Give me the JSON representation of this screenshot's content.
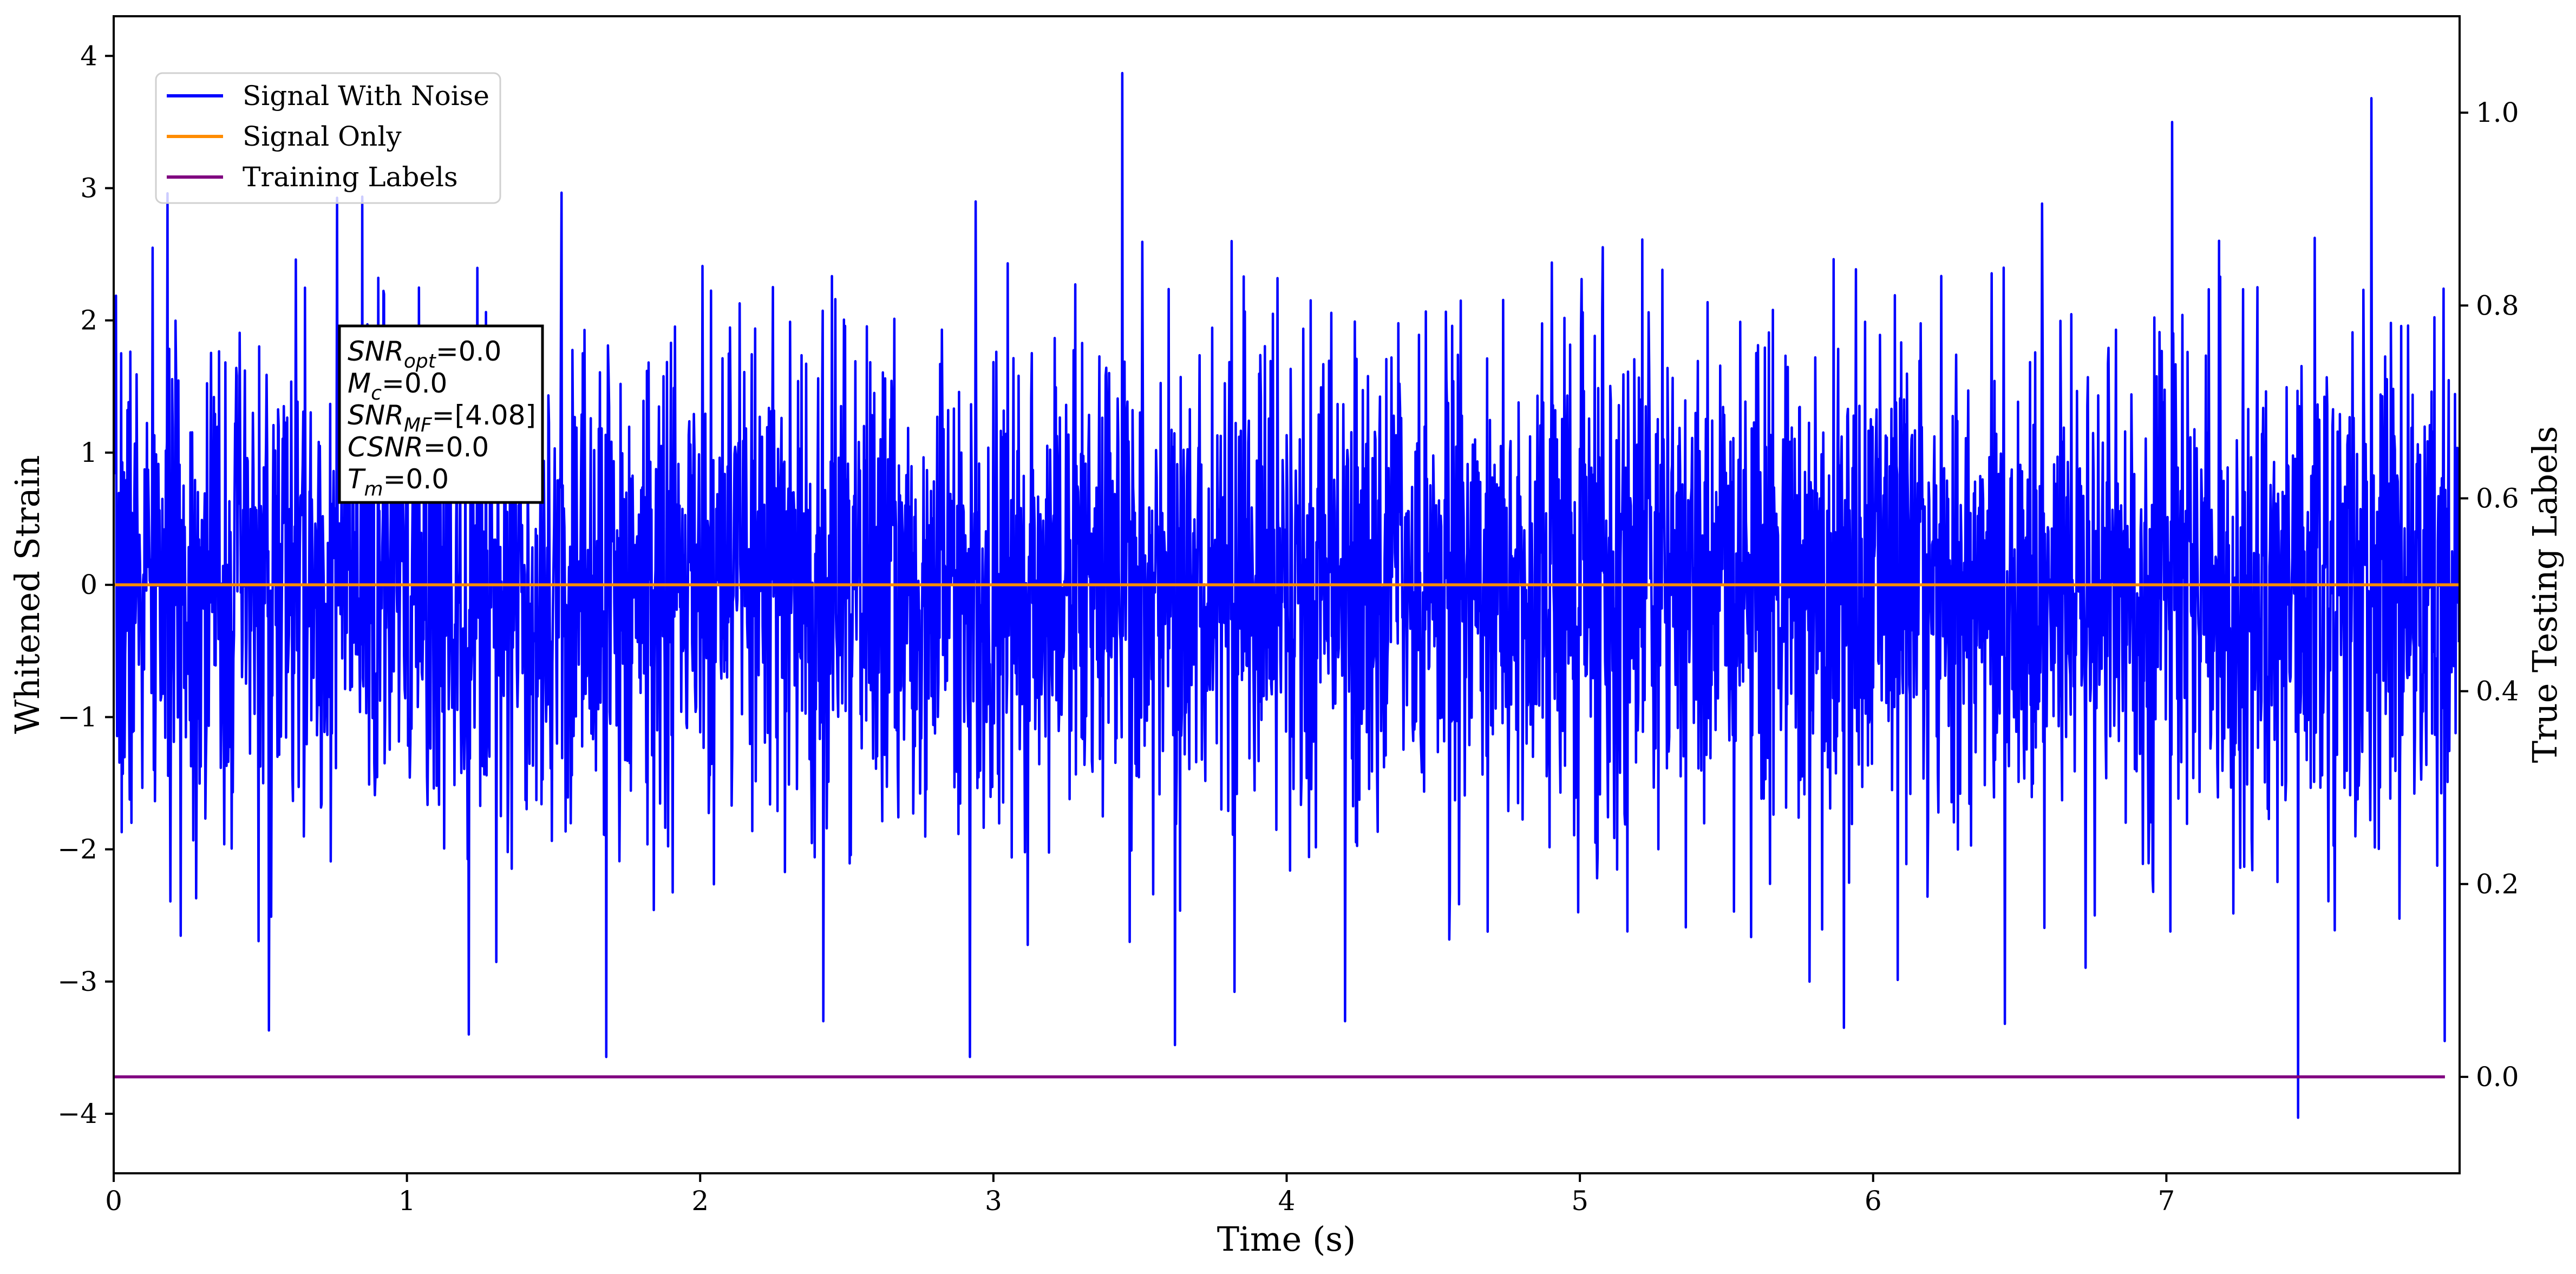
{
  "chart_data": {
    "type": "line",
    "title": "",
    "xlabel": "Time (s)",
    "ylabel": "Whitened Strain",
    "ylabel_right": "True Testing Labels",
    "xlim": [
      0,
      8.0
    ],
    "ylim": [
      -4.45,
      4.3
    ],
    "ylim_right": [
      -0.1,
      1.1
    ],
    "x_ticks": [
      0,
      1,
      2,
      3,
      4,
      5,
      6,
      7
    ],
    "y_ticks": [
      -4,
      -3,
      -2,
      -1,
      0,
      1,
      2,
      3,
      4
    ],
    "y_ticks_right": [
      0.0,
      0.2,
      0.4,
      0.6,
      0.8,
      1.0
    ],
    "y_tick_labels": [
      "−4",
      "−3",
      "−2",
      "−1",
      "0",
      "1",
      "2",
      "3",
      "4"
    ],
    "y_tick_labels_right": [
      "0.0",
      "0.2",
      "0.4",
      "0.6",
      "0.8",
      "1.0"
    ],
    "grid": false,
    "legend_position": "top-left",
    "series": [
      {
        "name": "Signal With Noise",
        "color": "#0000ff",
        "sample_rate_hz": 512,
        "noise_std": 0.95,
        "noise_seed": 7,
        "peaks": [
          [
            0.53,
            -3.37
          ],
          [
            1.21,
            -3.4
          ],
          [
            1.68,
            -3.57
          ],
          [
            2.42,
            -3.3
          ],
          [
            2.92,
            -3.57
          ],
          [
            3.44,
            3.87
          ],
          [
            3.62,
            -3.48
          ],
          [
            4.2,
            -3.3
          ],
          [
            5.9,
            -3.35
          ],
          [
            6.45,
            -3.32
          ],
          [
            7.02,
            3.5
          ],
          [
            7.45,
            -4.03
          ],
          [
            7.7,
            3.68
          ],
          [
            7.95,
            -3.45
          ]
        ]
      },
      {
        "name": "Signal Only",
        "color": "#ff8c00",
        "x": [
          0,
          8.0
        ],
        "y": [
          0,
          0
        ]
      },
      {
        "name": "Training Labels",
        "color": "#800080",
        "axis": "right",
        "x": [
          0,
          7.95
        ],
        "y": [
          0,
          0
        ]
      }
    ]
  },
  "annotation": {
    "lines": [
      {
        "base": "SNR",
        "sub": "opt",
        "value": "=0.0"
      },
      {
        "base": "M",
        "sub": "c",
        "value": "=0.0"
      },
      {
        "base": "SNR",
        "sub": "MF",
        "value": "=[4.08]"
      },
      {
        "base": "CSNR",
        "sub": "",
        "value": "=0.0"
      },
      {
        "base": "T",
        "sub": "m",
        "value": "=0.0"
      }
    ]
  }
}
